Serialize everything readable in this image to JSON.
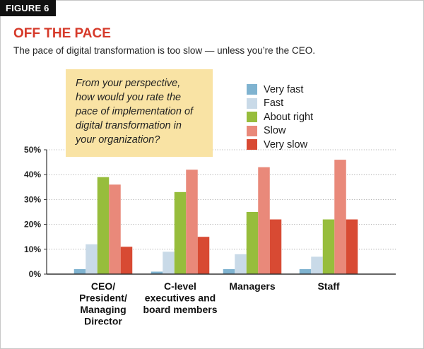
{
  "figure_label": "FIGURE 6",
  "title": "OFF THE PACE",
  "subtitle": "The pace of digital transformation is too slow — unless you’re the CEO.",
  "question": "From your perspective,\nhow would you rate the\npace of implementation of\ndigital transformation in\nyour organization?",
  "colors": {
    "very_fast": "#7fb3d0",
    "fast": "#c9dae8",
    "about_right": "#97bd3c",
    "slow": "#e9897a",
    "very_slow": "#d84a33",
    "title": "#d63a2a",
    "question_bg": "#f9e3a4"
  },
  "chart_data": {
    "type": "bar",
    "title": "OFF THE PACE",
    "xlabel": "",
    "ylabel": "",
    "ylim": [
      0,
      50
    ],
    "yticks": [
      "0%",
      "10%",
      "20%",
      "30%",
      "40%",
      "50%"
    ],
    "categories": [
      [
        "CEO/",
        "President/",
        "Managing",
        "Director"
      ],
      [
        "C-level",
        "executives and",
        "board members"
      ],
      [
        "Managers"
      ],
      [
        "Staff"
      ]
    ],
    "series": [
      {
        "name": "Very fast",
        "key": "very_fast",
        "values": [
          2,
          1,
          2,
          2
        ]
      },
      {
        "name": "Fast",
        "key": "fast",
        "values": [
          12,
          9,
          8,
          7
        ]
      },
      {
        "name": "About right",
        "key": "about_right",
        "values": [
          39,
          33,
          25,
          22
        ]
      },
      {
        "name": "Slow",
        "key": "slow",
        "values": [
          36,
          42,
          43,
          46
        ]
      },
      {
        "name": "Very slow",
        "key": "very_slow",
        "values": [
          11,
          15,
          22,
          22
        ]
      }
    ]
  }
}
